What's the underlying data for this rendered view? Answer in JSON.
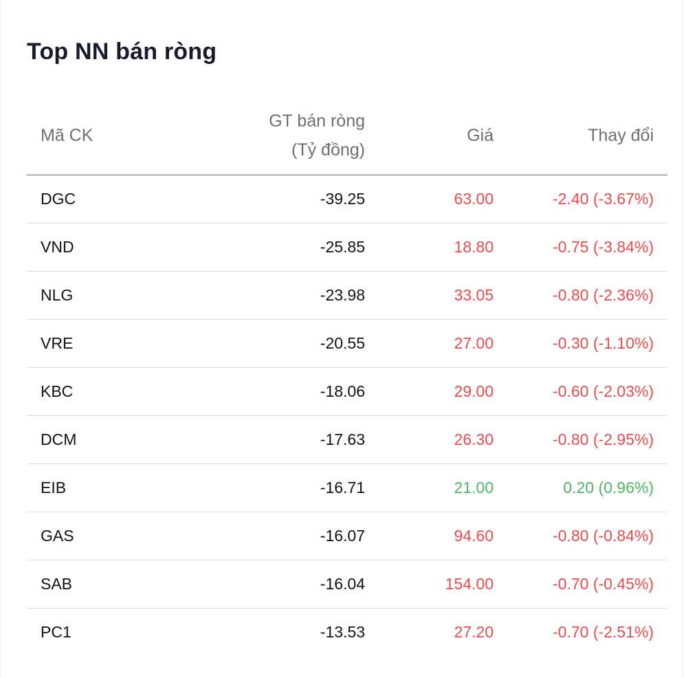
{
  "title": "Top NN bán ròng",
  "headers": {
    "symbol": "Mã CK",
    "net_value_line1": "GT bán ròng",
    "net_value_line2": "(Tỷ đồng)",
    "price": "Giá",
    "change": "Thay đổi"
  },
  "colors": {
    "down": "#e84c4c",
    "up": "#4db864",
    "text": "#111111",
    "header": "#6e6e73"
  },
  "rows": [
    {
      "symbol": "DGC",
      "net_value": "-39.25",
      "price": "63.00",
      "change": "-2.40 (-3.67%)",
      "direction": "down"
    },
    {
      "symbol": "VND",
      "net_value": "-25.85",
      "price": "18.80",
      "change": "-0.75 (-3.84%)",
      "direction": "down"
    },
    {
      "symbol": "NLG",
      "net_value": "-23.98",
      "price": "33.05",
      "change": "-0.80 (-2.36%)",
      "direction": "down"
    },
    {
      "symbol": "VRE",
      "net_value": "-20.55",
      "price": "27.00",
      "change": "-0.30 (-1.10%)",
      "direction": "down"
    },
    {
      "symbol": "KBC",
      "net_value": "-18.06",
      "price": "29.00",
      "change": "-0.60 (-2.03%)",
      "direction": "down"
    },
    {
      "symbol": "DCM",
      "net_value": "-17.63",
      "price": "26.30",
      "change": "-0.80 (-2.95%)",
      "direction": "down"
    },
    {
      "symbol": "EIB",
      "net_value": "-16.71",
      "price": "21.00",
      "change": "0.20 (0.96%)",
      "direction": "up"
    },
    {
      "symbol": "GAS",
      "net_value": "-16.07",
      "price": "94.60",
      "change": "-0.80 (-0.84%)",
      "direction": "down"
    },
    {
      "symbol": "SAB",
      "net_value": "-16.04",
      "price": "154.00",
      "change": "-0.70 (-0.45%)",
      "direction": "down"
    },
    {
      "symbol": "PC1",
      "net_value": "-13.53",
      "price": "27.20",
      "change": "-0.70 (-2.51%)",
      "direction": "down"
    }
  ]
}
